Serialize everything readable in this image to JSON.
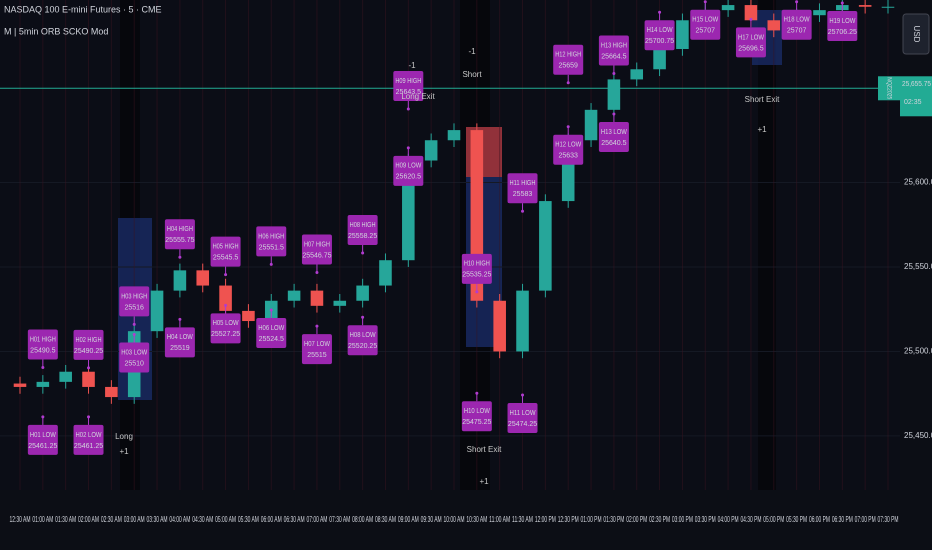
{
  "header": {
    "symbol": "NASDAQ 100 E-mini Futures · 5 · CME",
    "indicator": "M | 5min ORB SCKO Mod",
    "currency": "USD"
  },
  "chart_data": {
    "type": "candlestick",
    "categories": [
      "12:30 AM",
      "01:00 AM",
      "01:30 AM",
      "02:00 AM",
      "02:30 AM",
      "03:00 AM",
      "03:30 AM",
      "04:00 AM",
      "04:30 AM",
      "05:00 AM",
      "05:30 AM",
      "06:00 AM",
      "06:30 AM",
      "07:00 AM",
      "07:30 AM",
      "08:00 AM",
      "08:30 AM",
      "09:00 AM",
      "09:30 AM",
      "10:00 AM",
      "10:30 AM",
      "11:00 AM",
      "11:30 AM",
      "12:00 PM",
      "12:30 PM",
      "01:00 PM",
      "01:30 PM",
      "02:00 PM",
      "02:30 PM",
      "03:00 PM",
      "03:30 PM",
      "04:00 PM",
      "04:30 PM",
      "05:00 PM",
      "05:30 PM",
      "06:00 PM",
      "06:30 PM",
      "07:00 PM",
      "07:30 PM"
    ],
    "open": [
      25481,
      25479,
      25482,
      25488,
      25479,
      25473,
      25512,
      25536,
      25548,
      25539,
      25524,
      25518,
      25530,
      25536,
      25527,
      25530,
      25539,
      25554,
      25613,
      25625,
      25631,
      25530,
      25500,
      25536,
      25589,
      25625,
      25643,
      25661,
      25667,
      25679,
      25696,
      25702,
      25705,
      25696,
      25690,
      25699,
      25702,
      25705,
      25704
    ],
    "high": [
      25485,
      25486,
      25492,
      25492,
      25483,
      25516,
      25540,
      25552,
      25552,
      25543,
      25528,
      25534,
      25540,
      25540,
      25534,
      25543,
      25558,
      25617,
      25629,
      25635,
      25635,
      25534,
      25540,
      25593,
      25629,
      25647,
      25665,
      25671,
      25683,
      25700,
      25706,
      25709,
      25709,
      25700,
      25703,
      25706,
      25709,
      25709,
      25708
    ],
    "low": [
      25475,
      25475,
      25478,
      25475,
      25469,
      25469,
      25508,
      25532,
      25535,
      25520,
      25514,
      25514,
      25526,
      25523,
      25523,
      25526,
      25535,
      25550,
      25609,
      25621,
      25526,
      25496,
      25496,
      25532,
      25585,
      25621,
      25639,
      25657,
      25663,
      25675,
      25692,
      25698,
      25692,
      25686,
      25686,
      25695,
      25698,
      25700,
      25700
    ],
    "close": [
      25479,
      25482,
      25488,
      25479,
      25473,
      25512,
      25536,
      25548,
      25539,
      25524,
      25518,
      25530,
      25536,
      25527,
      25530,
      25539,
      25554,
      25613,
      25625,
      25631,
      25530,
      25500,
      25536,
      25589,
      25625,
      25643,
      25661,
      25667,
      25679,
      25696,
      25702,
      25705,
      25696,
      25690,
      25699,
      25702,
      25705,
      25704,
      25704
    ],
    "up_color": "#26a69a",
    "down_color": "#ef5350",
    "ylim": [
      25418,
      25708
    ],
    "yticks": [
      {
        "value": 25450,
        "label": "25,450.00"
      },
      {
        "value": 25500,
        "label": "25,500.00"
      },
      {
        "value": 25550,
        "label": "25,550.00"
      },
      {
        "value": 25600,
        "label": "25,600.00"
      }
    ],
    "last_price": {
      "symbol": "NQZ2025",
      "value": 25655.75,
      "label": "25,655.75",
      "countdown": "02:35",
      "color": "#22ab94"
    },
    "annotations": [
      {
        "category": "01:00 AM",
        "label": "H01 HIGH",
        "value": 25490.5
      },
      {
        "category": "01:00 AM",
        "label": "H01 LOW",
        "value": 25461.25
      },
      {
        "category": "02:00 AM",
        "label": "H02 HIGH",
        "value": 25490.25
      },
      {
        "category": "02:00 AM",
        "label": "H02 LOW",
        "value": 25461.25
      },
      {
        "category": "03:00 AM",
        "label": "H03 HIGH",
        "value": 25516
      },
      {
        "category": "03:00 AM",
        "label": "H03 LOW",
        "value": 25510
      },
      {
        "category": "04:00 AM",
        "label": "H04 HIGH",
        "value": 25555.75
      },
      {
        "category": "04:00 AM",
        "label": "H04 LOW",
        "value": 25519
      },
      {
        "category": "05:00 AM",
        "label": "H05 HIGH",
        "value": 25545.5
      },
      {
        "category": "05:00 AM",
        "label": "H05 LOW",
        "value": 25527.25
      },
      {
        "category": "06:00 AM",
        "label": "H06 HIGH",
        "value": 25551.5
      },
      {
        "category": "06:00 AM",
        "label": "H06 LOW",
        "value": 25524.5
      },
      {
        "category": "07:00 AM",
        "label": "H07 HIGH",
        "value": 25546.75
      },
      {
        "category": "07:00 AM",
        "label": "H07 LOW",
        "value": 25515
      },
      {
        "category": "08:00 AM",
        "label": "H08 HIGH",
        "value": 25558.25
      },
      {
        "category": "08:00 AM",
        "label": "H08 LOW",
        "value": 25520.25
      },
      {
        "category": "09:00 AM",
        "label": "H09 HIGH",
        "value": 25643.5
      },
      {
        "category": "09:00 AM",
        "label": "H09 LOW",
        "value": 25620.5
      },
      {
        "category": "10:30 AM",
        "label": "H10 HIGH",
        "value": 25535.25
      },
      {
        "category": "10:30 AM",
        "label": "H10 LOW",
        "value": 25475.25
      },
      {
        "category": "11:30 AM",
        "label": "H11 HIGH",
        "value": 25583
      },
      {
        "category": "11:30 AM",
        "label": "H11 LOW",
        "value": 25474.25
      },
      {
        "category": "12:30 PM",
        "label": "H12 HIGH",
        "value": 25659
      },
      {
        "category": "12:30 PM",
        "label": "H12 LOW",
        "value": 25633
      },
      {
        "category": "01:30 PM",
        "label": "H13 HIGH",
        "value": 25664.5
      },
      {
        "category": "01:30 PM",
        "label": "H13 LOW",
        "value": 25640.5
      },
      {
        "category": "02:30 PM",
        "label": "H14 LOW",
        "value": 25700.75
      },
      {
        "category": "03:30 PM",
        "label": "H15 LOW",
        "value": 25707
      },
      {
        "category": "04:30 PM",
        "label": "H17 LOW",
        "value": 25696.5
      },
      {
        "category": "05:30 PM",
        "label": "H18 LOW",
        "value": 25707
      },
      {
        "category": "06:30 PM",
        "label": "H19 LOW",
        "value": 25706.25
      }
    ]
  },
  "signals": [
    {
      "text": "Long Exit",
      "qty": "-1"
    },
    {
      "text": "Short",
      "qty": "-1"
    },
    {
      "text": "Long",
      "qty": "+1"
    },
    {
      "text": "Short Exit",
      "qty": "+1"
    },
    {
      "text": "Short Exit",
      "qty": "+1"
    }
  ]
}
